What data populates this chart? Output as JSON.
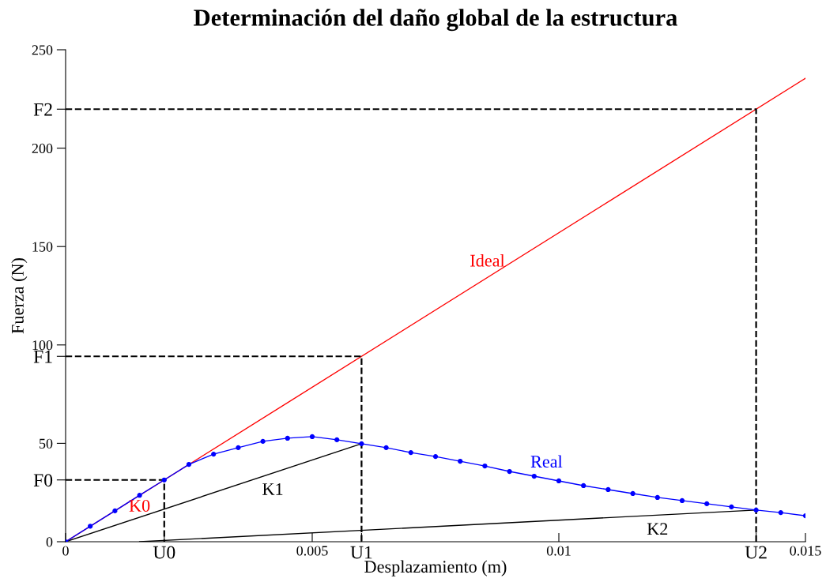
{
  "chart_data": {
    "type": "line",
    "title": "Determinación del daño global de la estructura",
    "xlabel": "Desplazamiento (m)",
    "ylabel": "Fuerza (N)",
    "xlim": [
      0,
      0.015
    ],
    "ylim": [
      0,
      250
    ],
    "xticks": [
      0,
      {
        "value": 0.002,
        "label": "U0"
      },
      0.005,
      {
        "value": 0.006,
        "label": "U1"
      },
      0.01,
      {
        "value": 0.014,
        "label": "U2"
      },
      0.015
    ],
    "yticks": [
      0,
      {
        "value": 31.4,
        "label": "F0"
      },
      50,
      {
        "value": 94.2,
        "label": "F1"
      },
      100,
      150,
      200,
      {
        "value": 219.8,
        "label": "F2"
      },
      250
    ],
    "grid": false,
    "legend": false,
    "series": [
      {
        "name": "Ideal",
        "color": "#ff0000",
        "x": [
          0,
          0.015
        ],
        "values": [
          0,
          235.5
        ],
        "marker": "none",
        "line_style": "solid"
      },
      {
        "name": "Real",
        "color": "#0000ff",
        "marker": "circle",
        "line_style": "solid",
        "x": [
          0,
          0.0005,
          0.001,
          0.0015,
          0.002,
          0.0025,
          0.003,
          0.0035,
          0.004,
          0.0045,
          0.005,
          0.0055,
          0.006,
          0.0065,
          0.007,
          0.0075,
          0.008,
          0.0085,
          0.009,
          0.0095,
          0.01,
          0.0105,
          0.011,
          0.0115,
          0.012,
          0.0125,
          0.013,
          0.0135,
          0.014,
          0.0145,
          0.015
        ],
        "values": [
          0,
          7.9,
          15.7,
          23.6,
          31.4,
          39.3,
          44.5,
          47.8,
          51,
          52.6,
          53.4,
          51.8,
          49.8,
          47.8,
          45.3,
          43.3,
          40.9,
          38.5,
          35.7,
          33.3,
          30.9,
          28.5,
          26.5,
          24.5,
          22.5,
          20.9,
          19.3,
          17.7,
          16.1,
          14.8,
          13.2
        ]
      },
      {
        "name": "K1",
        "color": "#000000",
        "x": [
          0,
          0.006
        ],
        "values": [
          0,
          49.8
        ],
        "marker": "none",
        "line_style": "solid"
      },
      {
        "name": "K2",
        "color": "#000000",
        "x": [
          0.0015,
          0.014
        ],
        "values": [
          0,
          16.1
        ],
        "marker": "none",
        "line_style": "solid"
      },
      {
        "color": "#000000",
        "x": [
          0,
          0.002,
          0.002
        ],
        "values": [
          31.4,
          31.4,
          0
        ],
        "marker": "none",
        "line_style": "dashed"
      },
      {
        "color": "#000000",
        "x": [
          0,
          0.006,
          0.006
        ],
        "values": [
          94.2,
          94.2,
          0
        ],
        "marker": "none",
        "line_style": "dashed"
      },
      {
        "color": "#000000",
        "x": [
          0,
          0.014,
          0.014
        ],
        "values": [
          219.8,
          219.8,
          0
        ],
        "marker": "none",
        "line_style": "dashed"
      }
    ],
    "annotations": [
      "K0"
    ]
  }
}
